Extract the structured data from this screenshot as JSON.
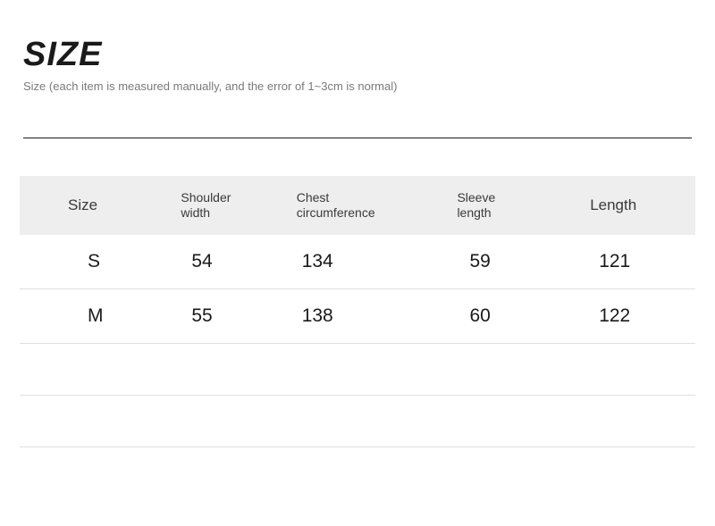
{
  "header": {
    "title": "SIZE",
    "subtitle": "Size (each item is measured manually, and the error of 1~3cm is normal)"
  },
  "table": {
    "columns": [
      "Size",
      "Shoulder width",
      "Chest circumference",
      "Sleeve length",
      "Length"
    ],
    "rows": [
      [
        "S",
        "54",
        "134",
        "59",
        "121"
      ],
      [
        "M",
        "55",
        "138",
        "60",
        "122"
      ]
    ],
    "header_bg": "#eeeeee",
    "border_color": "#e0e0e0",
    "text_color": "#1a1a1a",
    "header_text_color": "#3a3a3a",
    "header_fontsize": 14,
    "cell_fontsize": 21
  },
  "colors": {
    "background": "#ffffff",
    "title_color": "#1a1a1a",
    "subtitle_color": "#7a7a7a",
    "divider_color": "#1a1a1a"
  }
}
